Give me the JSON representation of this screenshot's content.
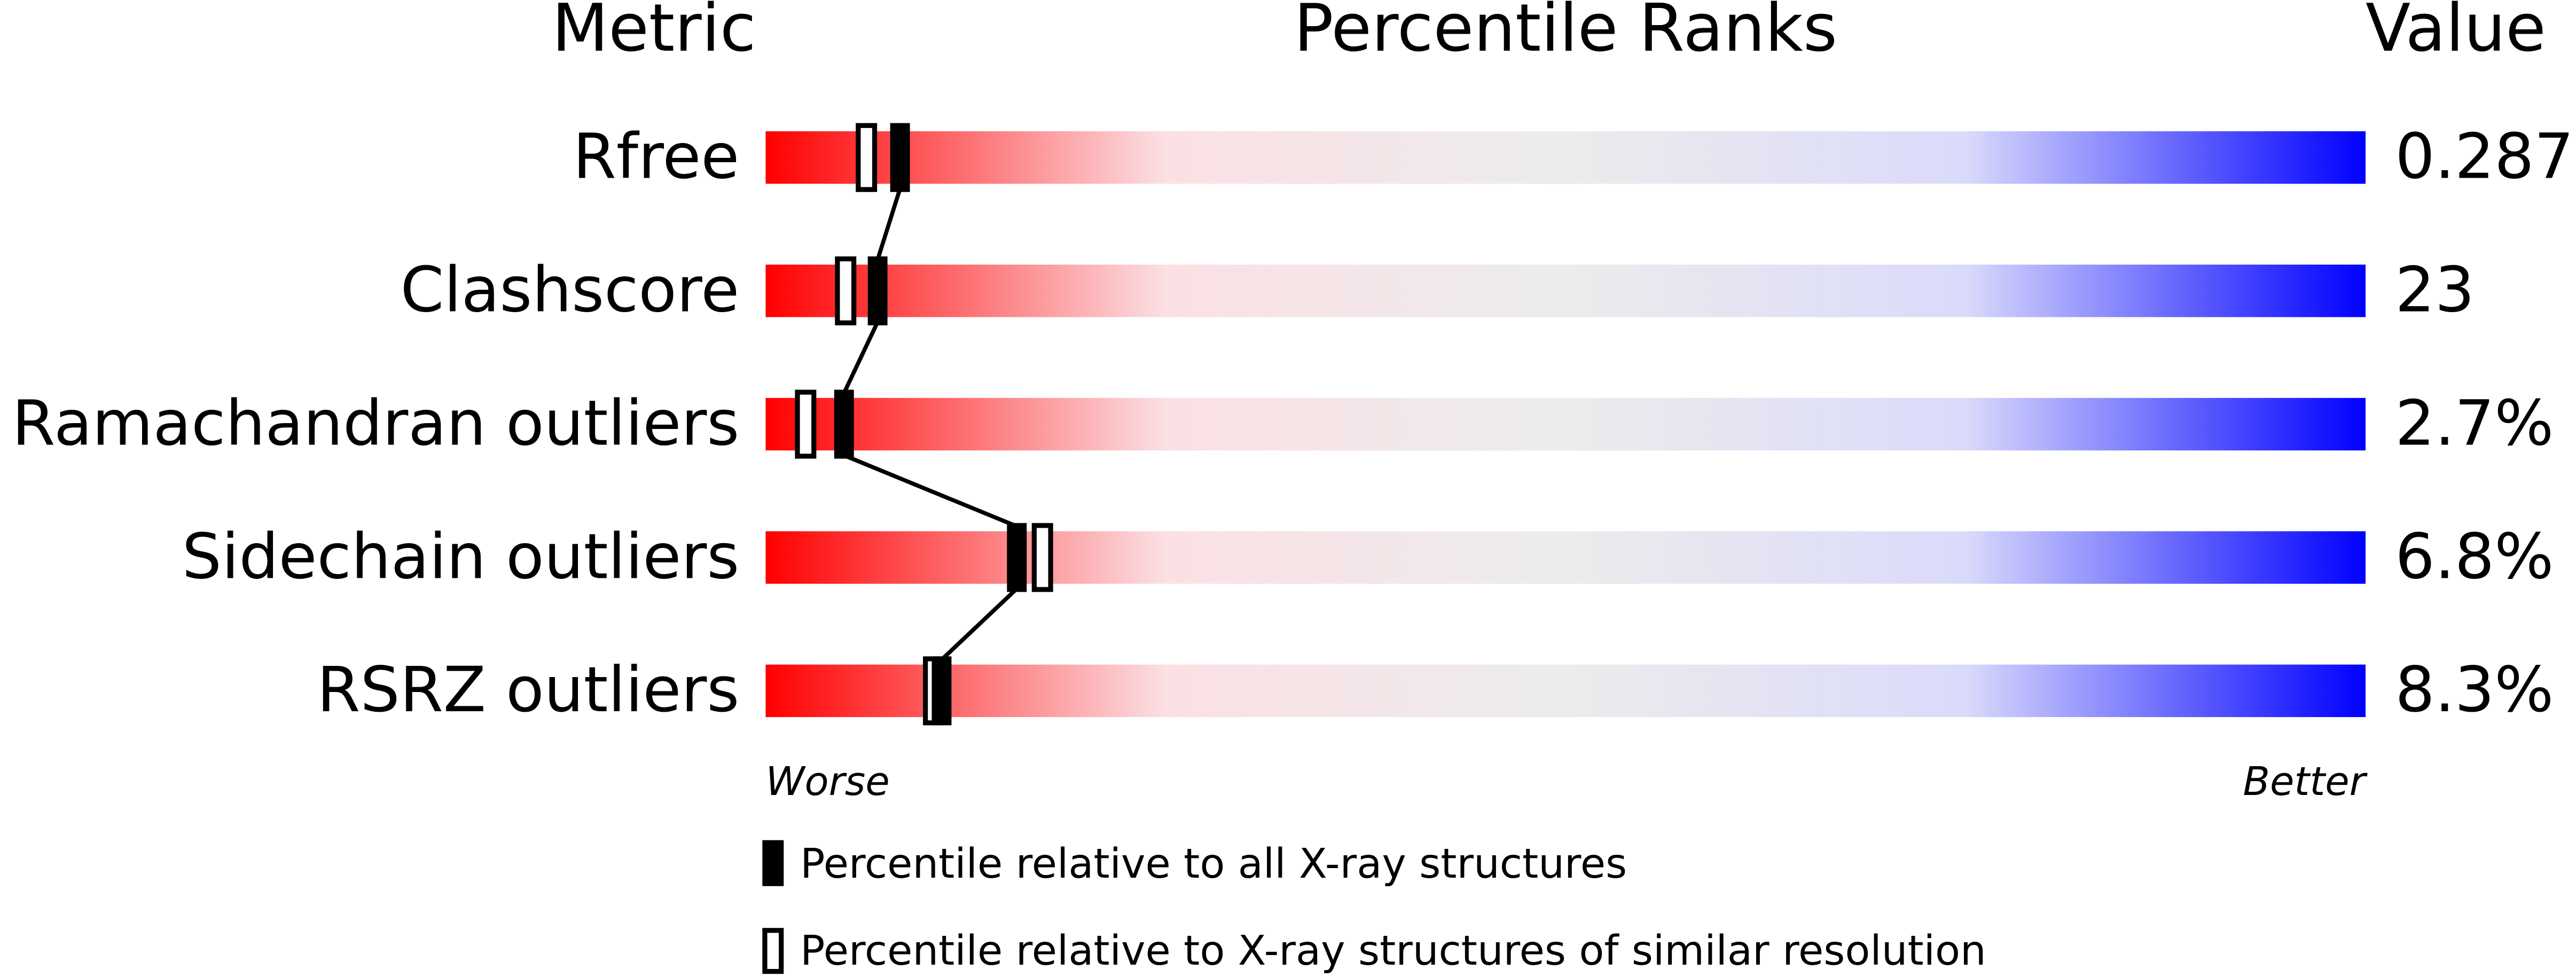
{
  "chart_data": {
    "type": "slider",
    "column_headers": [
      "Metric",
      "Percentile Ranks",
      "Value"
    ],
    "categories": [
      "Rfree",
      "Clashscore",
      "Ramachandran outliers",
      "Sidechain outliers",
      "RSRZ outliers"
    ],
    "metric_values": [
      "0.287",
      "23",
      "2.7%",
      "6.8%",
      "8.3%"
    ],
    "xlim": [
      0,
      100
    ],
    "worse_label": "Worse",
    "better_label": "Better",
    "gradient": [
      "#ff0000",
      "#fbe0e4",
      "#ececec",
      "#dadafb",
      "#0000ff"
    ],
    "series": [
      {
        "name": "Percentile relative to all X-ray structures",
        "color": "#000000",
        "style": "filled",
        "values": [
          8.4,
          7.0,
          4.9,
          15.7,
          11.0
        ]
      },
      {
        "name": "Percentile relative to X-ray structures of similar resolution",
        "color": "#000000",
        "style": "open",
        "values": [
          6.3,
          5.0,
          2.5,
          17.3,
          10.5
        ]
      }
    ]
  }
}
